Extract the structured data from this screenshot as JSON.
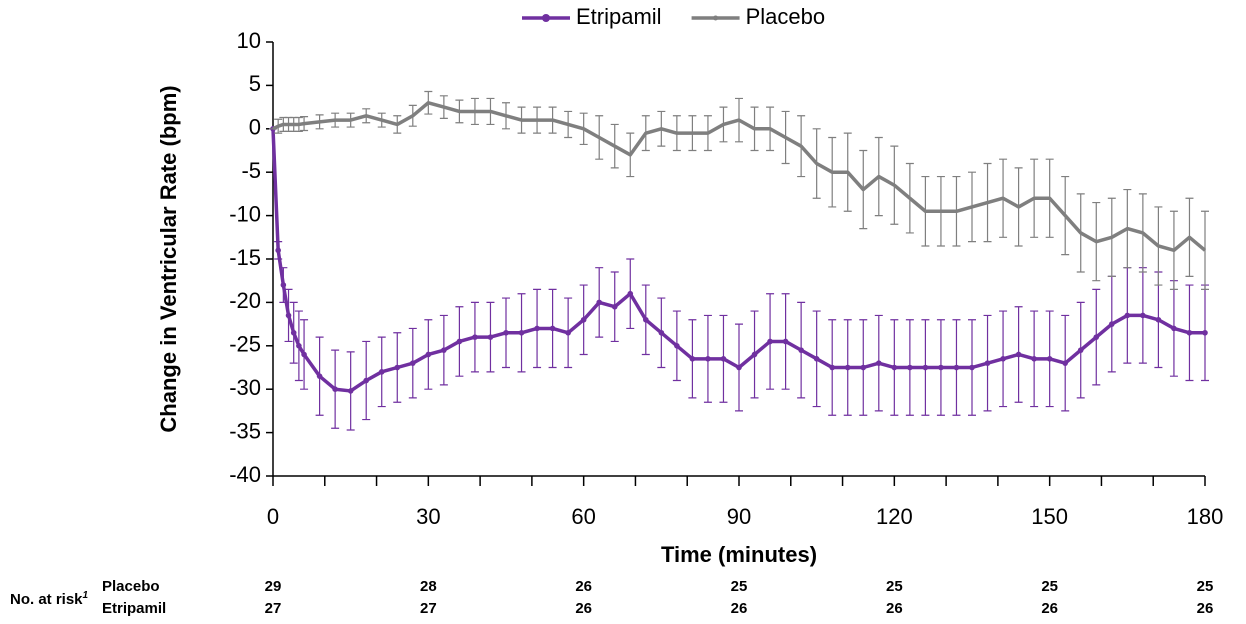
{
  "chart_data": {
    "type": "line",
    "x_label": "Time (minutes)",
    "y_label": "Change in Ventricular Rate (bpm)",
    "xlim": [
      0,
      180
    ],
    "xticks": [
      0,
      30,
      60,
      90,
      120,
      150,
      180
    ],
    "xminorticks": [
      10,
      20,
      40,
      50,
      70,
      80,
      100,
      110,
      130,
      140,
      160,
      170
    ],
    "ylim": [
      -40,
      10
    ],
    "yticks": [
      -40,
      -35,
      -30,
      -25,
      -20,
      -15,
      -10,
      -5,
      0,
      5,
      10
    ],
    "x": [
      0,
      1,
      2,
      3,
      4,
      5,
      6,
      9,
      12,
      15,
      18,
      21,
      24,
      27,
      30,
      33,
      36,
      39,
      42,
      45,
      48,
      51,
      54,
      57,
      60,
      63,
      66,
      69,
      72,
      75,
      78,
      81,
      84,
      87,
      90,
      93,
      96,
      99,
      102,
      105,
      108,
      111,
      114,
      117,
      120,
      123,
      126,
      129,
      132,
      135,
      138,
      141,
      144,
      147,
      150,
      153,
      156,
      159,
      162,
      165,
      168,
      171,
      174,
      177,
      180
    ],
    "legend": "top",
    "series": [
      {
        "name": "Etripamil",
        "color": "#7030a0",
        "markers": true,
        "values": [
          0,
          -14,
          -18,
          -21.5,
          -23.5,
          -25,
          -26,
          -28.5,
          -30,
          -30.2,
          -29,
          -28,
          -27.5,
          -27,
          -26,
          -25.5,
          -24.5,
          -24,
          -24,
          -23.5,
          -23.5,
          -23,
          -23,
          -23.5,
          -22,
          -20,
          -20.5,
          -19,
          -22,
          -23.5,
          -25,
          -26.5,
          -26.5,
          -26.5,
          -27.5,
          -26,
          -24.5,
          -24.5,
          -25.5,
          -26.5,
          -27.5,
          -27.5,
          -27.5,
          -27,
          -27.5,
          -27.5,
          -27.5,
          -27.5,
          -27.5,
          -27.5,
          -27,
          -26.5,
          -26,
          -26.5,
          -26.5,
          -27,
          -25.5,
          -24,
          -22.5,
          -21.5,
          -21.5,
          -22,
          -23,
          -23.5,
          -23.5
        ],
        "errors": [
          0,
          1,
          2,
          3,
          3.5,
          4,
          4,
          4.5,
          4.5,
          4.5,
          4.5,
          4,
          4,
          4,
          4,
          4,
          4,
          4,
          4,
          4,
          4.5,
          4.5,
          4.5,
          4,
          4,
          4,
          4,
          4,
          4,
          4,
          4,
          4.5,
          5,
          5,
          5,
          5,
          5.5,
          5.5,
          5.5,
          5.5,
          5.5,
          5.5,
          5.5,
          5.5,
          5.5,
          5.5,
          5.5,
          5.5,
          5.5,
          5.5,
          5.5,
          5.5,
          5.5,
          5.5,
          5.5,
          5.5,
          5.5,
          5.5,
          5.5,
          5.5,
          5.5,
          5.5,
          5.5,
          5.5,
          5.5
        ]
      },
      {
        "name": "Placebo",
        "color": "#7f7f7f",
        "markers": false,
        "values": [
          0,
          0.3,
          0.5,
          0.5,
          0.5,
          0.5,
          0.6,
          0.8,
          1,
          1,
          1.5,
          1,
          0.5,
          1.5,
          3,
          2.5,
          2,
          2,
          2,
          1.5,
          1,
          1,
          1,
          0.5,
          0,
          -1,
          -2,
          -3,
          -0.5,
          0,
          -0.5,
          -0.5,
          -0.5,
          0.5,
          1,
          0,
          0,
          -1,
          -2,
          -4,
          -5,
          -5,
          -7,
          -5.5,
          -6.5,
          -8,
          -9.5,
          -9.5,
          -9.5,
          -9,
          -8.5,
          -8,
          -9,
          -8,
          -8,
          -10,
          -12,
          -13,
          -12.5,
          -11.5,
          -12,
          -13.5,
          -14,
          -12.5,
          -14
        ],
        "errors": [
          0,
          0.8,
          0.8,
          0.8,
          0.8,
          0.8,
          0.8,
          0.8,
          0.8,
          0.8,
          0.8,
          0.8,
          1,
          1.2,
          1.3,
          1.3,
          1.3,
          1.5,
          1.5,
          1.5,
          1.5,
          1.5,
          1.5,
          1.5,
          1.8,
          2.5,
          2.5,
          2.5,
          2,
          2,
          2,
          2,
          2,
          2,
          2.5,
          2.5,
          2.5,
          3,
          3.5,
          4,
          4,
          4.5,
          4.5,
          4.5,
          4.5,
          4,
          4,
          4,
          4,
          4,
          4.5,
          4.5,
          4.5,
          4.5,
          4.5,
          4.5,
          4.5,
          4.5,
          4.5,
          4.5,
          4.5,
          4.5,
          4.5,
          4.5,
          4.5
        ]
      }
    ],
    "risk_table": {
      "label": "No. at risk",
      "footnote": "1",
      "rows": [
        {
          "name": "Placebo",
          "color": "#7f7f7f",
          "counts": [
            29,
            28,
            26,
            25,
            25,
            25,
            25
          ]
        },
        {
          "name": "Etripamil",
          "color": "#7030a0",
          "counts": [
            27,
            27,
            26,
            26,
            26,
            26,
            26
          ]
        }
      ]
    }
  }
}
